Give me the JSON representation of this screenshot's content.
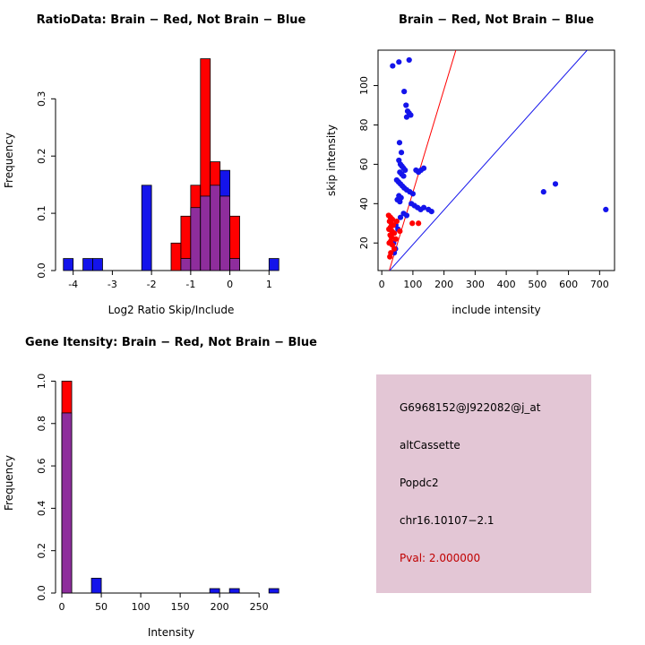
{
  "page": {
    "background": "#ffffff"
  },
  "chart_data": [
    {
      "id": "ratio-hist",
      "type": "histogram",
      "title": "RatioData: Brain − Red, Not Brain − Blue",
      "xlabel": "Log2 Ratio Skip/Include",
      "ylabel": "Frequency",
      "xlim": [
        -4.45,
        1.45
      ],
      "ylim": [
        0,
        0.385
      ],
      "xtick_values": [
        -4,
        -3,
        -2,
        -1,
        0,
        1
      ],
      "xtick_labels": [
        "-4",
        "-3",
        "-2",
        "-1",
        "0",
        "1"
      ],
      "ytick_values": [
        0,
        0.1,
        0.2,
        0.3
      ],
      "ytick_labels": [
        "0.0",
        "0.1",
        "0.2",
        "0.3"
      ],
      "bin_width": 0.25,
      "bin_starts": [
        -4.25,
        -3.75,
        -3.5,
        -2.25,
        -1.5,
        -1.25,
        -1.0,
        -0.75,
        -0.5,
        -0.25,
        0.0,
        1.0
      ],
      "blue": [
        0.021,
        0.021,
        0.021,
        0.149,
        0,
        0.021,
        0.11,
        0.13,
        0.149,
        0.175,
        0.021,
        0.021
      ],
      "red": [
        0,
        0,
        0,
        0,
        0.048,
        0.095,
        0.149,
        0.37,
        0.19,
        0.13,
        0.095,
        0
      ],
      "colors": {
        "blue": "#1414EB",
        "red": "#FF0000",
        "overlap": "#8E2D9C"
      }
    },
    {
      "id": "intensity-scatter",
      "type": "scatter",
      "title": "Brain − Red, Not Brain − Blue",
      "xlabel": "include intensity",
      "ylabel": "skip intensity",
      "xlim": [
        -12,
        748
      ],
      "ylim": [
        6,
        118
      ],
      "xtick_values": [
        0,
        100,
        200,
        300,
        400,
        500,
        600,
        700
      ],
      "xtick_labels": [
        "0",
        "100",
        "200",
        "300",
        "400",
        "500",
        "600",
        "700"
      ],
      "ytick_values": [
        20,
        40,
        60,
        80,
        100
      ],
      "ytick_labels": [
        "20",
        "40",
        "60",
        "80",
        "100"
      ],
      "lines": [
        {
          "x1": 24,
          "y1": 6,
          "x2": 238,
          "y2": 118,
          "color": "#FF0000"
        },
        {
          "x1": 14,
          "y1": 4,
          "x2": 660,
          "y2": 118,
          "color": "#1414EB"
        }
      ],
      "series": [
        {
          "name": "Not Brain",
          "color": "#1414EB",
          "points": [
            [
              35,
              110
            ],
            [
              55,
              112
            ],
            [
              88,
              113
            ],
            [
              72,
              97
            ],
            [
              78,
              90
            ],
            [
              83,
              87
            ],
            [
              88,
              86
            ],
            [
              93,
              85
            ],
            [
              80,
              84
            ],
            [
              57,
              71
            ],
            [
              63,
              66
            ],
            [
              55,
              62
            ],
            [
              60,
              60
            ],
            [
              65,
              59
            ],
            [
              70,
              58
            ],
            [
              75,
              57
            ],
            [
              58,
              56
            ],
            [
              64,
              55
            ],
            [
              70,
              54
            ],
            [
              110,
              57
            ],
            [
              118,
              56
            ],
            [
              126,
              57
            ],
            [
              135,
              58
            ],
            [
              48,
              52
            ],
            [
              54,
              51
            ],
            [
              60,
              50
            ],
            [
              66,
              49
            ],
            [
              72,
              48
            ],
            [
              80,
              47
            ],
            [
              90,
              46
            ],
            [
              100,
              45
            ],
            [
              55,
              44
            ],
            [
              62,
              43
            ],
            [
              50,
              42
            ],
            [
              58,
              41
            ],
            [
              95,
              40
            ],
            [
              105,
              39
            ],
            [
              115,
              38
            ],
            [
              125,
              37
            ],
            [
              135,
              38
            ],
            [
              150,
              37
            ],
            [
              160,
              36
            ],
            [
              70,
              35
            ],
            [
              80,
              34
            ],
            [
              60,
              33
            ],
            [
              45,
              29
            ],
            [
              52,
              27
            ],
            [
              520,
              46
            ],
            [
              558,
              50
            ],
            [
              720,
              37
            ],
            [
              38,
              20
            ],
            [
              44,
              17
            ],
            [
              40,
              15
            ]
          ]
        },
        {
          "name": "Brain",
          "color": "#FF0000",
          "points": [
            [
              22,
              34
            ],
            [
              28,
              33
            ],
            [
              34,
              32
            ],
            [
              25,
              31
            ],
            [
              31,
              30
            ],
            [
              37,
              29
            ],
            [
              28,
              28
            ],
            [
              23,
              27
            ],
            [
              33,
              26
            ],
            [
              40,
              25
            ],
            [
              27,
              24
            ],
            [
              31,
              23
            ],
            [
              45,
              22
            ],
            [
              29,
              21
            ],
            [
              24,
              20
            ],
            [
              34,
              19
            ],
            [
              40,
              17
            ],
            [
              29,
              15
            ],
            [
              26,
              13
            ],
            [
              98,
              30
            ],
            [
              118,
              30
            ],
            [
              58,
              26
            ],
            [
              48,
              31
            ]
          ]
        }
      ]
    },
    {
      "id": "gene-hist",
      "type": "histogram",
      "title": "Gene Itensity: Brain − Red, Not Brain − Blue",
      "xlabel": "Intensity",
      "ylabel": "Frequency",
      "xlim": [
        -8,
        285
      ],
      "ylim": [
        0,
        1.04
      ],
      "xtick_values": [
        0,
        50,
        100,
        150,
        200,
        250
      ],
      "xtick_labels": [
        "0",
        "50",
        "100",
        "150",
        "200",
        "250"
      ],
      "ytick_values": [
        0,
        0.2,
        0.4,
        0.6,
        0.8,
        1.0
      ],
      "ytick_labels": [
        "0.0",
        "0.2",
        "0.4",
        "0.6",
        "0.8",
        "1.0"
      ],
      "bin_width": 12.5,
      "bin_starts": [
        0,
        37.5,
        187.5,
        212.5,
        262.5
      ],
      "blue": [
        0.85,
        0.07,
        0.021,
        0.021,
        0.021
      ],
      "red": [
        1.0,
        0,
        0,
        0,
        0
      ],
      "colors": {
        "blue": "#1414EB",
        "red": "#FF0000",
        "overlap": "#8E2D9C"
      }
    }
  ],
  "infobox": {
    "bg": "#E3C6D5",
    "pval_color": "#C00000",
    "lines": [
      "G6968152@J922082@j_at",
      "altCassette",
      "Popdc2",
      "chr16.10107−2.1",
      "Pval: 2.000000"
    ]
  }
}
